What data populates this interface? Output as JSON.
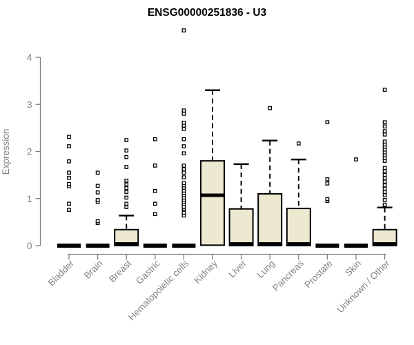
{
  "chart_data": {
    "type": "boxplot",
    "title": "ENSG00000251836 - U3",
    "ylabel": "Expression",
    "ylim": [
      0,
      4.6
    ],
    "yticks": [
      0,
      1,
      2,
      3,
      4
    ],
    "grid": false,
    "legend": "none",
    "categories": [
      "Bladder",
      "Brain",
      "Breast",
      "Gastric",
      "Hematopoietic cells",
      "Kidney",
      "Liver",
      "Lung",
      "Pancreas",
      "Prostate",
      "Skin",
      "Unknown / Other"
    ],
    "series": [
      {
        "category": "Bladder",
        "whisker_low": 0,
        "q1": 0,
        "median": 0,
        "q3": 0,
        "whisker_high": 0,
        "outliers": [
          0.76,
          0.89,
          1.26,
          1.31,
          1.44,
          1.55,
          1.79,
          2.11,
          2.31
        ]
      },
      {
        "category": "Brain",
        "whisker_low": 0,
        "q1": 0,
        "median": 0,
        "q3": 0,
        "whisker_high": 0,
        "outliers": [
          0.48,
          0.52,
          0.93,
          0.97,
          1.13,
          1.27,
          1.55
        ]
      },
      {
        "category": "Breast",
        "whisker_low": 0,
        "q1": 0,
        "median": 0,
        "q3": 0.34,
        "whisker_high": 0.64,
        "outliers": [
          0.82,
          0.89,
          1.02,
          1.14,
          1.22,
          1.3,
          1.38,
          1.67,
          1.88,
          2.02,
          2.24
        ]
      },
      {
        "category": "Gastric",
        "whisker_low": 0,
        "q1": 0,
        "median": 0,
        "q3": 0,
        "whisker_high": 0,
        "outliers": [
          0.67,
          0.89,
          1.16,
          1.7,
          2.26
        ]
      },
      {
        "category": "Hematopoietic cells",
        "whisker_low": 0,
        "q1": 0,
        "median": 0,
        "q3": 0,
        "whisker_high": 0,
        "outliers": [
          0.64,
          0.7,
          0.78,
          0.82,
          0.88,
          0.92,
          0.97,
          1.02,
          1.07,
          1.12,
          1.17,
          1.23,
          1.28,
          1.33,
          1.45,
          1.55,
          1.62,
          1.7,
          1.96,
          2.11,
          2.26,
          2.48,
          2.55,
          2.61,
          2.8,
          2.87,
          4.57
        ]
      },
      {
        "category": "Kidney",
        "whisker_low": 0,
        "q1": 0.01,
        "median": 1.07,
        "q3": 1.8,
        "whisker_high": 3.3,
        "outliers": []
      },
      {
        "category": "Liver",
        "whisker_low": 0,
        "q1": 0,
        "median": 0.02,
        "q3": 0.78,
        "whisker_high": 1.73,
        "outliers": []
      },
      {
        "category": "Lung",
        "whisker_low": 0,
        "q1": 0,
        "median": 0.02,
        "q3": 1.1,
        "whisker_high": 2.23,
        "outliers": [
          2.92
        ]
      },
      {
        "category": "Pancreas",
        "whisker_low": 0,
        "q1": 0,
        "median": 0.02,
        "q3": 0.79,
        "whisker_high": 1.83,
        "outliers": [
          2.17
        ]
      },
      {
        "category": "Prostate",
        "whisker_low": 0,
        "q1": 0,
        "median": 0,
        "q3": 0,
        "whisker_high": 0,
        "outliers": [
          0.95,
          0.99,
          1.32,
          1.41,
          2.62
        ]
      },
      {
        "category": "Skin",
        "whisker_low": 0,
        "q1": 0,
        "median": 0,
        "q3": 0,
        "whisker_high": 0,
        "outliers": [
          1.83
        ]
      },
      {
        "category": "Unknown / Other",
        "whisker_low": 0,
        "q1": 0,
        "median": 0.02,
        "q3": 0.34,
        "whisker_high": 0.81,
        "outliers": [
          0.87,
          0.97,
          1.07,
          1.14,
          1.21,
          1.28,
          1.36,
          1.43,
          1.5,
          1.58,
          1.65,
          1.8,
          1.86,
          1.92,
          1.98,
          2.04,
          2.1,
          2.15,
          2.21,
          2.36,
          2.43,
          2.53,
          2.62,
          3.31
        ]
      }
    ],
    "colors": {
      "background": "#ffffff",
      "box_fill": "#EDE8D0",
      "box_border": "#000000",
      "median": "#000000",
      "whisker": "#000000",
      "outlier_stroke": "#000000",
      "outlier_fill": "#ffffff",
      "axis": "#7f7f7f",
      "tick_label": "#838383",
      "title": "#000000"
    }
  }
}
